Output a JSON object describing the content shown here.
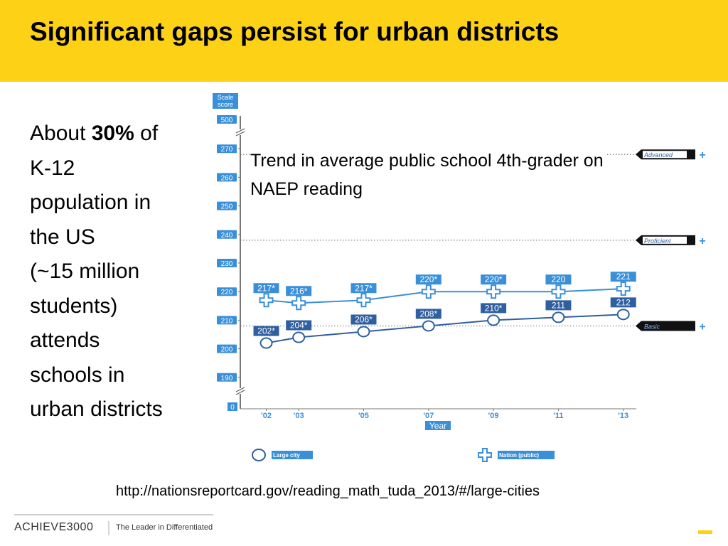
{
  "title": "Significant gaps persist for urban districts",
  "body": {
    "first": [
      "About",
      "30%",
      "of"
    ],
    "lines": [
      "K-12",
      "population in",
      "the US",
      "(~15 million",
      "students)",
      "attends",
      "schools in",
      "urban districts"
    ]
  },
  "source": "http://nationsreportcard.gov/reading_math_tuda_2013/#/large-cities",
  "footer": {
    "logo": "ACHIEVE3000",
    "tagline": "The Leader in Differentiated"
  },
  "chart_data": {
    "type": "line",
    "title": "Trend in average  public school 4th-grader on NAEP reading",
    "y_label": "Scale score",
    "x_label": "Year",
    "x": [
      2002,
      2003,
      2005,
      2007,
      2009,
      2011,
      2013
    ],
    "xlim": [
      2001.2,
      2013.4
    ],
    "xticks": [
      {
        "value": 2002,
        "label": "'02"
      },
      {
        "value": 2003,
        "label": "'03"
      },
      {
        "value": 2005,
        "label": "'05"
      },
      {
        "value": 2007,
        "label": "'07"
      },
      {
        "value": 2009,
        "label": "'09"
      },
      {
        "value": 2011,
        "label": "'11"
      },
      {
        "value": 2013,
        "label": "'13"
      }
    ],
    "ylim": [
      180,
      280
    ],
    "yticks": [
      190,
      200,
      210,
      220,
      230,
      240,
      250,
      260,
      270
    ],
    "ybreak_labels": [
      0,
      500
    ],
    "series": [
      {
        "name": "Large city",
        "color": "#2f5fa0",
        "marker": "circle",
        "values": [
          202,
          204,
          206,
          208,
          210,
          211,
          212
        ],
        "value_labels": [
          "202*",
          "204*",
          "206*",
          "208*",
          "210*",
          "211",
          "212"
        ]
      },
      {
        "name": "Nation (public)",
        "color": "#3a8fd9",
        "marker": "cross",
        "values": [
          217,
          216,
          217,
          220,
          220,
          220,
          221
        ],
        "value_labels": [
          "217*",
          "216*",
          "217*",
          "220*",
          "220*",
          "220",
          "221"
        ]
      }
    ],
    "reference_lines": [
      {
        "label": "Advanced",
        "value": 268
      },
      {
        "label": "Proficient",
        "value": 238
      },
      {
        "label": "Basic",
        "value": 208
      }
    ]
  }
}
